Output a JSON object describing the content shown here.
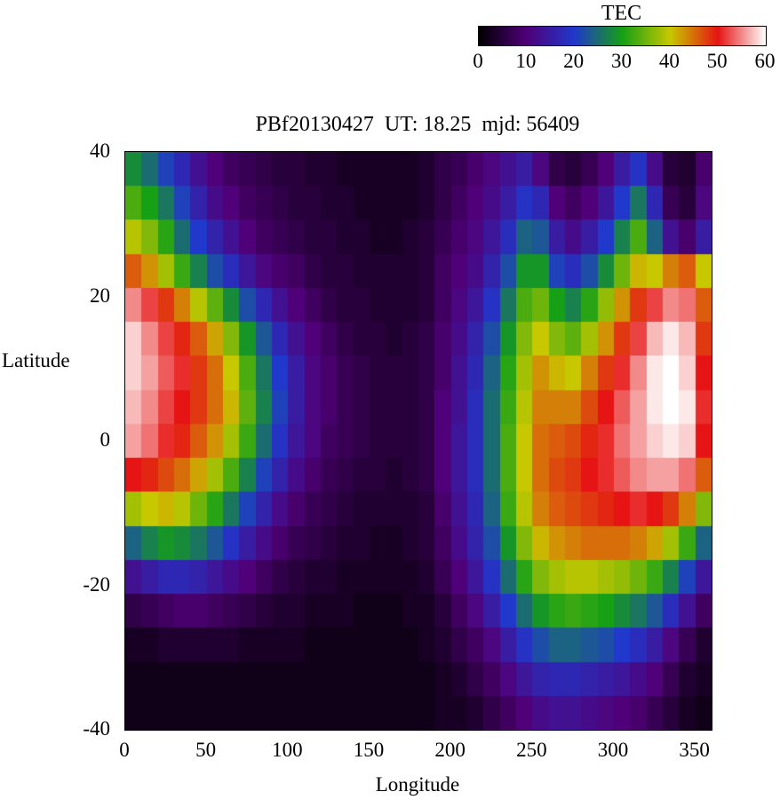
{
  "title": "PBf20130427  UT: 18.25  mjd: 56409",
  "colorbar": {
    "title": "TEC",
    "min": 0,
    "max": 60,
    "ticks": [
      0,
      10,
      20,
      30,
      40,
      50,
      60
    ],
    "palette": [
      [
        0,
        "#000000"
      ],
      [
        10,
        "#500078"
      ],
      [
        20,
        "#2038cc"
      ],
      [
        30,
        "#16a016"
      ],
      [
        40,
        "#c8c800"
      ],
      [
        50,
        "#e61414"
      ],
      [
        60,
        "#ffffff"
      ]
    ]
  },
  "axes": {
    "xlabel": "Longitude",
    "ylabel": "Latitude",
    "x_ticks": [
      0,
      50,
      100,
      150,
      200,
      250,
      300,
      350
    ],
    "y_ticks": [
      40,
      20,
      0,
      -20,
      -40
    ]
  },
  "chart_data": {
    "type": "heatmap",
    "title": "PBf20130427  UT: 18.25  mjd: 56409",
    "xlabel": "Longitude",
    "ylabel": "Latitude",
    "colorbar_label": "TEC",
    "xlim": [
      0,
      360
    ],
    "ylim": [
      -40,
      40
    ],
    "zlim": [
      0,
      60
    ],
    "x": [
      0,
      10,
      20,
      30,
      40,
      50,
      60,
      70,
      80,
      90,
      100,
      110,
      120,
      130,
      140,
      150,
      160,
      170,
      180,
      190,
      200,
      210,
      220,
      230,
      240,
      250,
      260,
      270,
      280,
      290,
      300,
      310,
      320,
      330,
      340,
      350
    ],
    "y": [
      40,
      35,
      30,
      25,
      20,
      15,
      10,
      5,
      0,
      -5,
      -10,
      -15,
      -20,
      -25,
      -30,
      -35,
      -40
    ],
    "values": [
      [
        28,
        25,
        21,
        17,
        13,
        10,
        8,
        7,
        6,
        5,
        5,
        4,
        4,
        3,
        3,
        3,
        3,
        3,
        4,
        6,
        7,
        9,
        11,
        13,
        15,
        11,
        6,
        5,
        7,
        10,
        15,
        19,
        12,
        5,
        4,
        9
      ],
      [
        33,
        30,
        26,
        21,
        16,
        12,
        10,
        8,
        7,
        6,
        5,
        5,
        4,
        4,
        3,
        3,
        3,
        3,
        4,
        6,
        8,
        10,
        12,
        15,
        19,
        17,
        10,
        8,
        10,
        14,
        20,
        26,
        17,
        7,
        5,
        11
      ],
      [
        39,
        36,
        31,
        25,
        20,
        16,
        13,
        10,
        8,
        7,
        6,
        5,
        5,
        4,
        4,
        3,
        3,
        4,
        5,
        7,
        9,
        11,
        14,
        18,
        24,
        23,
        15,
        12,
        15,
        20,
        27,
        33,
        24,
        13,
        9,
        15
      ],
      [
        46,
        43,
        38,
        32,
        27,
        22,
        18,
        14,
        11,
        9,
        8,
        6,
        5,
        5,
        4,
        4,
        4,
        4,
        5,
        8,
        10,
        12,
        16,
        22,
        29,
        29,
        21,
        18,
        22,
        28,
        35,
        41,
        40,
        44,
        46,
        40
      ],
      [
        55,
        52,
        48,
        44,
        39,
        34,
        28,
        22,
        17,
        13,
        10,
        8,
        6,
        5,
        5,
        4,
        4,
        4,
        5,
        8,
        11,
        14,
        19,
        26,
        33,
        35,
        30,
        27,
        31,
        37,
        43,
        48,
        52,
        55,
        54,
        46
      ],
      [
        58,
        55,
        52,
        49,
        46,
        42,
        36,
        29,
        23,
        17,
        13,
        10,
        8,
        6,
        5,
        5,
        4,
        5,
        6,
        9,
        12,
        16,
        22,
        29,
        36,
        40,
        36,
        34,
        38,
        43,
        48,
        52,
        57,
        59,
        57,
        48
      ],
      [
        58,
        56,
        53,
        51,
        48,
        45,
        40,
        33,
        26,
        20,
        15,
        11,
        9,
        7,
        6,
        5,
        5,
        5,
        6,
        9,
        13,
        17,
        24,
        31,
        38,
        43,
        41,
        40,
        44,
        48,
        51,
        55,
        59,
        60,
        58,
        50
      ],
      [
        57,
        55,
        52,
        50,
        48,
        45,
        41,
        34,
        27,
        21,
        15,
        11,
        9,
        7,
        6,
        5,
        5,
        5,
        6,
        10,
        13,
        18,
        25,
        32,
        39,
        44,
        44,
        44,
        47,
        50,
        53,
        56,
        59,
        60,
        59,
        51
      ],
      [
        56,
        54,
        51,
        49,
        46,
        43,
        38,
        32,
        25,
        19,
        14,
        11,
        8,
        7,
        6,
        5,
        5,
        5,
        6,
        10,
        14,
        18,
        25,
        33,
        40,
        45,
        46,
        47,
        49,
        51,
        54,
        56,
        58,
        59,
        58,
        50
      ],
      [
        50,
        49,
        47,
        45,
        42,
        38,
        33,
        27,
        21,
        16,
        12,
        9,
        7,
        6,
        5,
        5,
        4,
        5,
        6,
        10,
        14,
        18,
        25,
        33,
        40,
        45,
        47,
        48,
        50,
        51,
        53,
        55,
        56,
        56,
        54,
        46
      ],
      [
        38,
        40,
        41,
        39,
        35,
        31,
        26,
        21,
        16,
        12,
        9,
        7,
        6,
        5,
        4,
        4,
        4,
        4,
        5,
        9,
        13,
        17,
        24,
        32,
        39,
        44,
        46,
        47,
        48,
        49,
        50,
        51,
        50,
        48,
        44,
        36
      ],
      [
        24,
        27,
        29,
        28,
        26,
        23,
        19,
        15,
        12,
        9,
        7,
        6,
        5,
        4,
        4,
        3,
        3,
        4,
        5,
        8,
        12,
        16,
        22,
        29,
        36,
        41,
        43,
        44,
        45,
        45,
        45,
        44,
        42,
        38,
        32,
        24
      ],
      [
        13,
        15,
        17,
        17,
        16,
        14,
        12,
        10,
        8,
        6,
        5,
        4,
        4,
        3,
        3,
        3,
        3,
        3,
        4,
        7,
        10,
        14,
        19,
        25,
        31,
        36,
        38,
        39,
        39,
        38,
        37,
        35,
        32,
        27,
        21,
        14
      ],
      [
        6,
        7,
        8,
        9,
        9,
        8,
        7,
        6,
        5,
        4,
        4,
        3,
        3,
        3,
        2,
        2,
        2,
        3,
        3,
        5,
        8,
        11,
        15,
        20,
        25,
        29,
        31,
        32,
        31,
        30,
        28,
        26,
        23,
        18,
        13,
        8
      ],
      [
        3,
        3,
        4,
        4,
        4,
        4,
        4,
        3,
        3,
        3,
        3,
        2,
        2,
        2,
        2,
        2,
        2,
        2,
        3,
        4,
        6,
        8,
        11,
        15,
        19,
        22,
        24,
        24,
        23,
        22,
        20,
        18,
        15,
        11,
        7,
        4
      ],
      [
        2,
        2,
        2,
        2,
        2,
        2,
        2,
        2,
        2,
        2,
        2,
        2,
        2,
        2,
        2,
        2,
        2,
        2,
        2,
        3,
        4,
        6,
        8,
        11,
        14,
        16,
        17,
        17,
        16,
        15,
        14,
        12,
        10,
        7,
        4,
        3
      ],
      [
        2,
        2,
        2,
        2,
        2,
        2,
        2,
        2,
        2,
        2,
        2,
        2,
        2,
        2,
        2,
        2,
        2,
        2,
        2,
        3,
        3,
        4,
        6,
        8,
        10,
        12,
        13,
        13,
        12,
        11,
        10,
        9,
        7,
        5,
        3,
        2
      ]
    ]
  }
}
